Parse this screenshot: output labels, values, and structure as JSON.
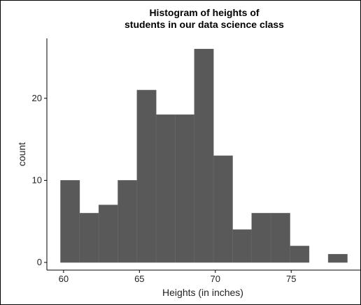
{
  "chart_data": {
    "type": "histogram",
    "title": [
      "Histogram of heights of",
      "students in our data science class"
    ],
    "x_label": "Heights (in inches)",
    "y_label": "count",
    "bins": [
      59.8,
      61.06,
      62.32,
      63.58,
      64.84,
      66.1,
      67.36,
      68.62,
      69.88,
      71.14,
      72.4,
      73.66,
      74.92,
      76.18,
      77.44,
      78.7
    ],
    "values": [
      10,
      6,
      7,
      10,
      21,
      18,
      18,
      26,
      13,
      4,
      6,
      6,
      2,
      0,
      1
    ],
    "color": "#595959",
    "xlim": [
      58.9,
      79.6
    ],
    "xticks": [
      60,
      65,
      70,
      75,
      80
    ],
    "ylim": [
      -0.85,
      27.3
    ],
    "yticks": [
      0,
      10,
      20
    ]
  }
}
